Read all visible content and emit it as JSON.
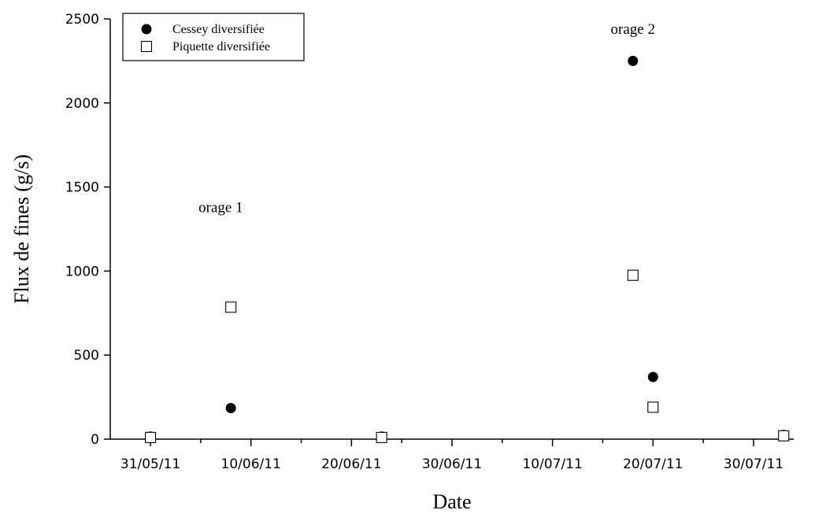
{
  "chart_data": {
    "type": "scatter",
    "title": "",
    "xlabel": "Date",
    "ylabel": "Flux de fines (g/s)",
    "x_type": "date",
    "xlim": [
      "2011-05-27",
      "2011-08-03"
    ],
    "ylim": [
      0,
      2500
    ],
    "x_ticks": [
      {
        "date": "2011-05-31",
        "label": "31/05/11"
      },
      {
        "date": "2011-06-10",
        "label": "10/06/11"
      },
      {
        "date": "2011-06-20",
        "label": "20/06/11"
      },
      {
        "date": "2011-06-30",
        "label": "30/06/11"
      },
      {
        "date": "2011-07-10",
        "label": "10/07/11"
      },
      {
        "date": "2011-07-20",
        "label": "20/07/11"
      },
      {
        "date": "2011-07-30",
        "label": "30/07/11"
      }
    ],
    "y_ticks": [
      0,
      500,
      1000,
      1500,
      2000,
      2500
    ],
    "grid": false,
    "legend": "top-left",
    "series": [
      {
        "name": "Cessey diversifiée",
        "marker": "filled-circle",
        "color": "#000000",
        "points": [
          {
            "x": "2011-05-31",
            "y": 15
          },
          {
            "x": "2011-06-08",
            "y": 185
          },
          {
            "x": "2011-06-23",
            "y": 15
          },
          {
            "x": "2011-07-18",
            "y": 2250
          },
          {
            "x": "2011-07-20",
            "y": 370
          },
          {
            "x": "2011-08-02",
            "y": 25
          }
        ]
      },
      {
        "name": "Piquette diversifiée",
        "marker": "open-square",
        "color": "#000000",
        "points": [
          {
            "x": "2011-05-31",
            "y": 10
          },
          {
            "x": "2011-06-08",
            "y": 785
          },
          {
            "x": "2011-06-23",
            "y": 10
          },
          {
            "x": "2011-07-18",
            "y": 975
          },
          {
            "x": "2011-07-20",
            "y": 190
          },
          {
            "x": "2011-08-02",
            "y": 20
          }
        ]
      }
    ],
    "annotations": [
      {
        "text": "orage 1",
        "x": "2011-06-07",
        "y": 1350
      },
      {
        "text": "orage 2",
        "x": "2011-07-18",
        "y": 2410
      }
    ]
  }
}
